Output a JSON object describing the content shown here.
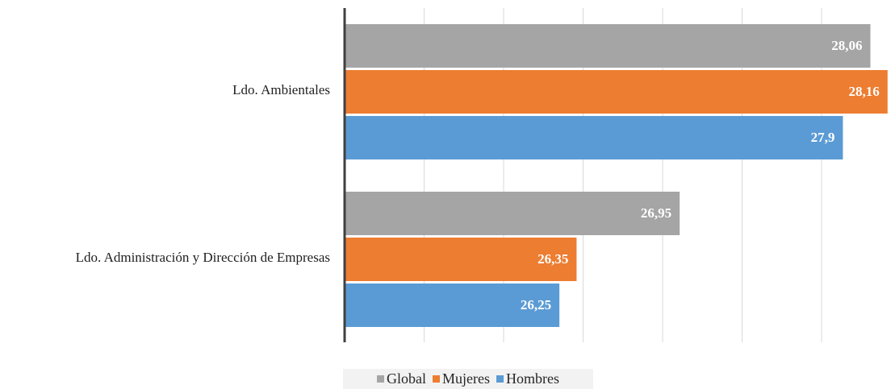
{
  "chart_data": {
    "type": "bar",
    "orientation": "horizontal",
    "categories": [
      "Ldo. Ambientales",
      "Ldo. Administración y Dirección de Empresas"
    ],
    "series": [
      {
        "name": "Global",
        "color": "#a5a5a5",
        "values": [
          28.06,
          26.95
        ],
        "labels": [
          "28,06",
          "26,95"
        ]
      },
      {
        "name": "Mujeres",
        "color": "#ed7d31",
        "values": [
          28.16,
          26.35
        ],
        "labels": [
          "28,16",
          "26,35"
        ]
      },
      {
        "name": "Hombres",
        "color": "#5b9bd5",
        "values": [
          27.9,
          26.25
        ],
        "labels": [
          "27,9",
          "26,25"
        ]
      }
    ],
    "xlim": [
      25,
      28.1
    ],
    "grid": true,
    "tick_labels_shown": false,
    "legend_position": "bottom"
  }
}
